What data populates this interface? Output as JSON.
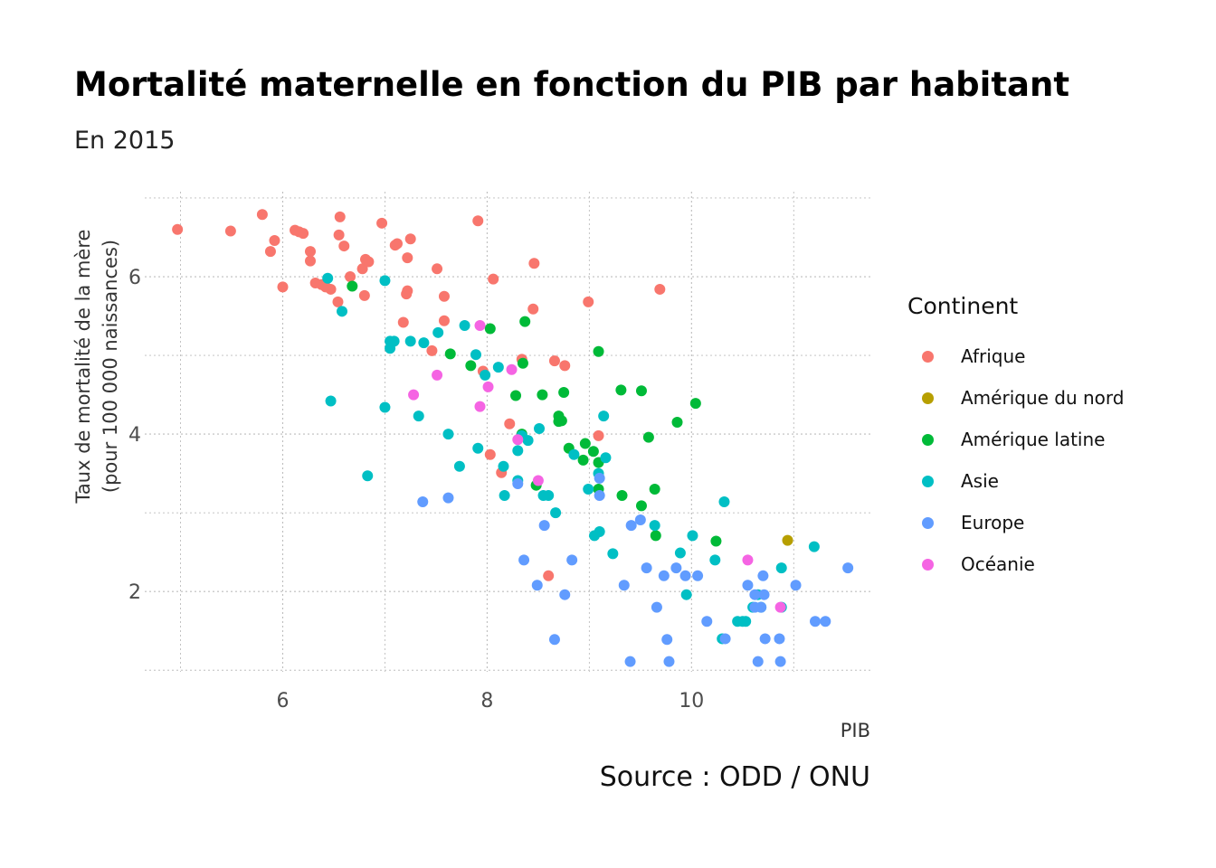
{
  "chart_data": {
    "type": "scatter",
    "title": "Mortalité maternelle en fonction du PIB par habitant",
    "subtitle": "En 2015",
    "xlabel": "PIB",
    "ylabel": [
      "Taux de mortalité de la mère",
      "(pour 100 000 naissances)"
    ],
    "caption": "Source : ODD / ONU",
    "xlim": [
      4.65,
      11.75
    ],
    "ylim": [
      0.98,
      7.08
    ],
    "xticks": [
      6,
      8,
      10
    ],
    "yticks": [
      2,
      4,
      6
    ],
    "grid": true,
    "legend_position": "right",
    "legend_title": "Continent",
    "series": [
      {
        "name": "Afrique",
        "color": "#F8766D",
        "points": [
          [
            4.97,
            6.6
          ],
          [
            5.49,
            6.58
          ],
          [
            5.8,
            6.79
          ],
          [
            5.88,
            6.32
          ],
          [
            5.92,
            6.46
          ],
          [
            6.0,
            5.87
          ],
          [
            6.12,
            6.59
          ],
          [
            6.16,
            6.57
          ],
          [
            6.2,
            6.55
          ],
          [
            6.27,
            6.32
          ],
          [
            6.27,
            6.2
          ],
          [
            6.32,
            5.92
          ],
          [
            6.38,
            5.9
          ],
          [
            6.42,
            5.87
          ],
          [
            6.47,
            5.84
          ],
          [
            6.54,
            5.68
          ],
          [
            6.55,
            6.53
          ],
          [
            6.56,
            6.76
          ],
          [
            6.6,
            6.39
          ],
          [
            6.66,
            6.0
          ],
          [
            6.78,
            6.1
          ],
          [
            6.8,
            5.76
          ],
          [
            6.81,
            6.22
          ],
          [
            6.84,
            6.19
          ],
          [
            6.97,
            6.68
          ],
          [
            7.1,
            6.4
          ],
          [
            7.12,
            6.42
          ],
          [
            7.18,
            5.42
          ],
          [
            7.21,
            5.78
          ],
          [
            7.22,
            6.24
          ],
          [
            7.22,
            5.82
          ],
          [
            7.25,
            6.48
          ],
          [
            7.46,
            5.06
          ],
          [
            7.51,
            6.1
          ],
          [
            7.58,
            5.44
          ],
          [
            7.58,
            5.75
          ],
          [
            7.91,
            6.71
          ],
          [
            7.96,
            4.8
          ],
          [
            8.06,
            5.97
          ],
          [
            8.03,
            3.74
          ],
          [
            8.14,
            3.51
          ],
          [
            8.22,
            4.13
          ],
          [
            8.34,
            4.95
          ],
          [
            8.45,
            5.59
          ],
          [
            8.46,
            6.17
          ],
          [
            8.6,
            2.2
          ],
          [
            8.66,
            4.93
          ],
          [
            8.76,
            4.87
          ],
          [
            8.99,
            5.68
          ],
          [
            9.09,
            3.98
          ],
          [
            9.69,
            5.84
          ]
        ]
      },
      {
        "name": "Amérique du nord",
        "color": "#B79F00",
        "points": [
          [
            10.94,
            2.65
          ]
        ]
      },
      {
        "name": "Amérique latine",
        "color": "#00BA38",
        "points": [
          [
            6.68,
            5.88
          ],
          [
            7.64,
            5.02
          ],
          [
            7.84,
            4.87
          ],
          [
            8.03,
            5.34
          ],
          [
            8.28,
            4.49
          ],
          [
            8.34,
            4.0
          ],
          [
            8.35,
            4.9
          ],
          [
            8.37,
            5.43
          ],
          [
            8.48,
            3.35
          ],
          [
            8.54,
            4.5
          ],
          [
            8.7,
            4.23
          ],
          [
            8.7,
            4.16
          ],
          [
            8.73,
            4.17
          ],
          [
            8.75,
            4.53
          ],
          [
            8.8,
            3.82
          ],
          [
            8.94,
            3.67
          ],
          [
            8.96,
            3.88
          ],
          [
            9.04,
            3.78
          ],
          [
            9.09,
            5.05
          ],
          [
            9.09,
            3.64
          ],
          [
            9.09,
            3.3
          ],
          [
            9.31,
            4.56
          ],
          [
            9.32,
            3.22
          ],
          [
            9.51,
            4.55
          ],
          [
            9.51,
            3.09
          ],
          [
            9.58,
            3.96
          ],
          [
            9.64,
            3.3
          ],
          [
            9.65,
            2.71
          ],
          [
            9.86,
            4.15
          ],
          [
            10.04,
            4.39
          ],
          [
            10.24,
            2.64
          ]
        ]
      },
      {
        "name": "Asie",
        "color": "#00BFC4",
        "points": [
          [
            6.44,
            5.98
          ],
          [
            6.47,
            4.42
          ],
          [
            6.58,
            5.56
          ],
          [
            6.83,
            3.47
          ],
          [
            7.0,
            5.95
          ],
          [
            7.0,
            4.34
          ],
          [
            7.05,
            5.09
          ],
          [
            7.05,
            5.18
          ],
          [
            7.09,
            5.18
          ],
          [
            7.25,
            5.18
          ],
          [
            7.33,
            4.23
          ],
          [
            7.38,
            5.16
          ],
          [
            7.52,
            5.29
          ],
          [
            7.62,
            4.0
          ],
          [
            7.73,
            3.59
          ],
          [
            7.78,
            5.38
          ],
          [
            7.89,
            5.01
          ],
          [
            7.91,
            3.82
          ],
          [
            7.98,
            4.75
          ],
          [
            8.11,
            4.85
          ],
          [
            8.16,
            3.59
          ],
          [
            8.17,
            3.22
          ],
          [
            8.3,
            3.41
          ],
          [
            8.3,
            3.79
          ],
          [
            8.34,
            3.98
          ],
          [
            8.4,
            3.92
          ],
          [
            8.51,
            4.07
          ],
          [
            8.55,
            3.22
          ],
          [
            8.6,
            3.22
          ],
          [
            8.67,
            3.0
          ],
          [
            8.85,
            3.74
          ],
          [
            8.99,
            3.3
          ],
          [
            9.05,
            2.71
          ],
          [
            9.09,
            3.5
          ],
          [
            9.1,
            2.76
          ],
          [
            9.14,
            4.23
          ],
          [
            9.16,
            3.7
          ],
          [
            9.23,
            2.48
          ],
          [
            9.64,
            2.84
          ],
          [
            9.89,
            2.49
          ],
          [
            9.95,
            1.96
          ],
          [
            10.01,
            2.71
          ],
          [
            10.23,
            2.4
          ],
          [
            10.3,
            1.4
          ],
          [
            10.32,
            3.14
          ],
          [
            10.45,
            1.62
          ],
          [
            10.5,
            1.62
          ],
          [
            10.53,
            1.62
          ],
          [
            10.6,
            1.8
          ],
          [
            10.65,
            1.96
          ],
          [
            10.68,
            1.8
          ],
          [
            10.88,
            2.3
          ],
          [
            10.88,
            1.8
          ],
          [
            11.2,
            2.57
          ]
        ]
      },
      {
        "name": "Europe",
        "color": "#619CFF",
        "points": [
          [
            7.37,
            3.14
          ],
          [
            7.62,
            3.19
          ],
          [
            8.3,
            3.37
          ],
          [
            8.36,
            2.4
          ],
          [
            8.49,
            2.08
          ],
          [
            8.56,
            2.84
          ],
          [
            8.66,
            1.39
          ],
          [
            8.76,
            1.96
          ],
          [
            8.83,
            2.4
          ],
          [
            9.1,
            3.44
          ],
          [
            9.1,
            3.22
          ],
          [
            9.34,
            2.08
          ],
          [
            9.4,
            1.11
          ],
          [
            9.41,
            2.84
          ],
          [
            9.5,
            2.91
          ],
          [
            9.56,
            2.3
          ],
          [
            9.66,
            1.8
          ],
          [
            9.73,
            2.2
          ],
          [
            9.76,
            1.39
          ],
          [
            9.78,
            1.11
          ],
          [
            9.85,
            2.3
          ],
          [
            9.94,
            2.2
          ],
          [
            10.06,
            2.2
          ],
          [
            10.15,
            1.62
          ],
          [
            10.33,
            1.4
          ],
          [
            10.55,
            2.08
          ],
          [
            10.62,
            1.96
          ],
          [
            10.62,
            1.8
          ],
          [
            10.65,
            1.11
          ],
          [
            10.68,
            1.8
          ],
          [
            10.7,
            2.2
          ],
          [
            10.71,
            1.96
          ],
          [
            10.72,
            1.4
          ],
          [
            10.86,
            1.4
          ],
          [
            10.87,
            1.11
          ],
          [
            11.02,
            2.08
          ],
          [
            11.21,
            1.62
          ],
          [
            11.31,
            1.62
          ],
          [
            11.53,
            2.3
          ]
        ]
      },
      {
        "name": "Océanie",
        "color": "#F564E3",
        "points": [
          [
            7.28,
            4.5
          ],
          [
            7.51,
            4.75
          ],
          [
            7.93,
            5.38
          ],
          [
            7.93,
            4.35
          ],
          [
            8.01,
            4.6
          ],
          [
            8.24,
            4.82
          ],
          [
            8.3,
            3.93
          ],
          [
            8.5,
            3.41
          ],
          [
            10.55,
            2.4
          ],
          [
            10.87,
            1.8
          ]
        ]
      }
    ]
  }
}
